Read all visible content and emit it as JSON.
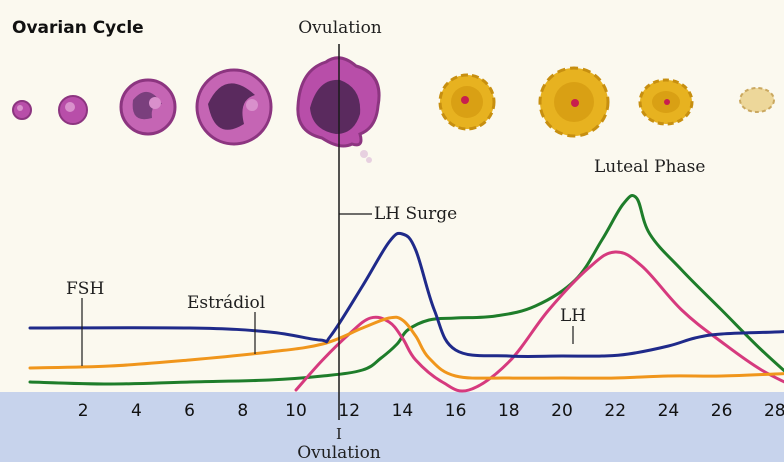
{
  "title": "Ovarian Cycle",
  "ovulation_top": "Ovulation",
  "ovulation_bottom_number": "I",
  "ovulation_bottom": "Ovulation",
  "luteal_phase": "Luteal Phase",
  "labels": {
    "lh_surge": "LH Surge",
    "fsh": "FSH",
    "estradiol": "Estrádiol",
    "lh": "LH"
  },
  "colors": {
    "background": "#fbf9ef",
    "axis_band": "#c7d3ec",
    "fsh": "#1f2a8a",
    "estradiol": "#f0961c",
    "lh": "#d63a7e",
    "progesterone": "#1e7d2a",
    "follicle": "#b84ea9",
    "follicle_inner": "#5a2a5e",
    "corpus_luteum": "#e7b220"
  },
  "chart_data": {
    "type": "line",
    "x_ticks": [
      2,
      4,
      6,
      8,
      10,
      12,
      14,
      16,
      18,
      20,
      22,
      24,
      26,
      28
    ],
    "xlim": [
      0,
      29.5
    ],
    "ylim": [
      0,
      100
    ],
    "series": [
      {
        "key": "fsh",
        "x": [
          0,
          6,
          9,
          10.9,
          11.3,
          12.5,
          13.5,
          14,
          14.5,
          15.2,
          16,
          18,
          20,
          21.5,
          22.5,
          24,
          25,
          26,
          28,
          29.5
        ],
        "y": [
          31,
          31,
          29,
          25,
          27,
          52,
          74,
          78,
          70,
          40,
          20,
          17,
          17,
          17,
          18,
          22,
          26,
          28,
          29,
          30
        ]
      },
      {
        "key": "estradiol",
        "x": [
          0,
          3,
          6,
          9,
          11,
          12.5,
          13.5,
          14,
          14.5,
          15,
          16,
          18,
          20,
          22,
          24,
          26,
          28,
          29.5
        ],
        "y": [
          11,
          12,
          15,
          19,
          23,
          31,
          36,
          35,
          27,
          16,
          7,
          6,
          6,
          6,
          7,
          7,
          8,
          9
        ]
      },
      {
        "key": "lh",
        "x": [
          10,
          11,
          12,
          12.8,
          13.5,
          14,
          14.5,
          15.5,
          16.5,
          18,
          19.5,
          21,
          22,
          23,
          24.5,
          26,
          27.5,
          29
        ],
        "y": [
          0,
          15,
          28,
          36,
          34,
          26,
          15,
          4,
          0,
          14,
          40,
          61,
          69,
          62,
          40,
          24,
          10,
          0
        ]
      },
      {
        "key": "progesterone",
        "x": [
          0,
          3,
          6,
          9,
          11,
          12.5,
          13.2,
          13.8,
          14.2,
          15,
          16,
          17.5,
          19,
          20.5,
          21.5,
          22.3,
          22.8,
          23.3,
          24.5,
          26,
          27.5,
          29
        ],
        "y": [
          4,
          3,
          4,
          5,
          7,
          10,
          16,
          23,
          30,
          35,
          36,
          37,
          42,
          55,
          75,
          93,
          96,
          78,
          60,
          40,
          20,
          2
        ]
      }
    ]
  }
}
